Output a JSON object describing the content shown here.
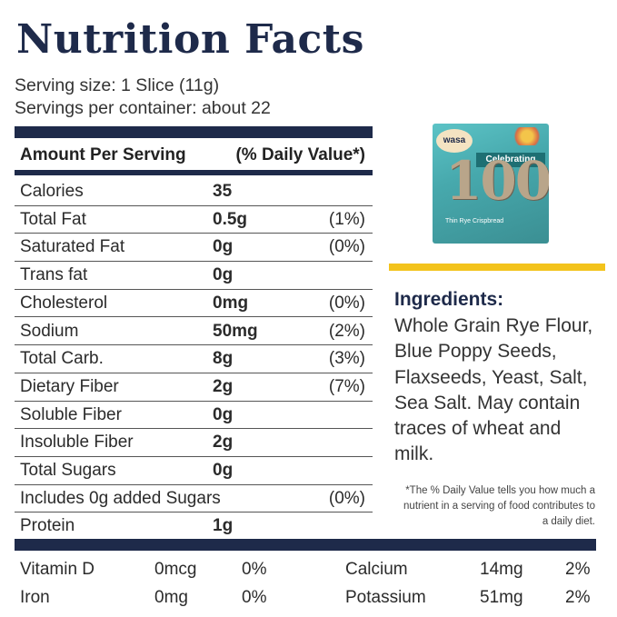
{
  "title": "Nutrition Facts",
  "serving_size": "Serving size: 1 Slice (11g)",
  "servings_per_container": "Servings per container: about 22",
  "table_header": {
    "amount": "Amount Per Serving",
    "dv": "(% Daily Value*)"
  },
  "nutrients": [
    {
      "name": "Calories",
      "amount": "35",
      "dv": ""
    },
    {
      "name": "Total Fat",
      "amount": "0.5g",
      "dv": "(1%)"
    },
    {
      "name": "Saturated Fat",
      "amount": "0g",
      "dv": "(0%)"
    },
    {
      "name": "Trans fat",
      "amount": "0g",
      "dv": ""
    },
    {
      "name": "Cholesterol",
      "amount": "0mg",
      "dv": "(0%)"
    },
    {
      "name": "Sodium",
      "amount": "50mg",
      "dv": "(2%)"
    },
    {
      "name": "Total Carb.",
      "amount": "8g",
      "dv": "(3%)"
    },
    {
      "name": "Dietary Fiber",
      "amount": "2g",
      "dv": "(7%)"
    },
    {
      "name": "Soluble Fiber",
      "amount": "0g",
      "dv": ""
    },
    {
      "name": "Insoluble Fiber",
      "amount": "2g",
      "dv": ""
    },
    {
      "name": "Total Sugars",
      "amount": "0g",
      "dv": ""
    },
    {
      "name": "Includes 0g added Sugars",
      "amount": "",
      "dv": "(0%)"
    },
    {
      "name": "Protein",
      "amount": "1g",
      "dv": ""
    }
  ],
  "product": {
    "brand": "wasa",
    "banner": "Celebrating",
    "number": "100",
    "subtitle": "Thin Rye Crispbread"
  },
  "ingredients": {
    "heading": "Ingredients:",
    "text": "Whole Grain Rye Flour, Blue Poppy Seeds, Flaxseeds, Yeast, Salt, Sea Salt. May contain traces of wheat and milk."
  },
  "footnote": "*The % Daily Value tells you how much a nutrient in a serving of food contributes to a daily diet.",
  "vitamins_minerals": [
    {
      "name": "Vitamin D",
      "amount": "0mcg",
      "dv": "0%"
    },
    {
      "name": "Calcium",
      "amount": "14mg",
      "dv": "2%"
    },
    {
      "name": "Iron",
      "amount": "0mg",
      "dv": "0%"
    },
    {
      "name": "Potassium",
      "amount": "51mg",
      "dv": "2%"
    }
  ],
  "colors": {
    "navy": "#1e2a4a",
    "yellow": "#f3c31c"
  }
}
